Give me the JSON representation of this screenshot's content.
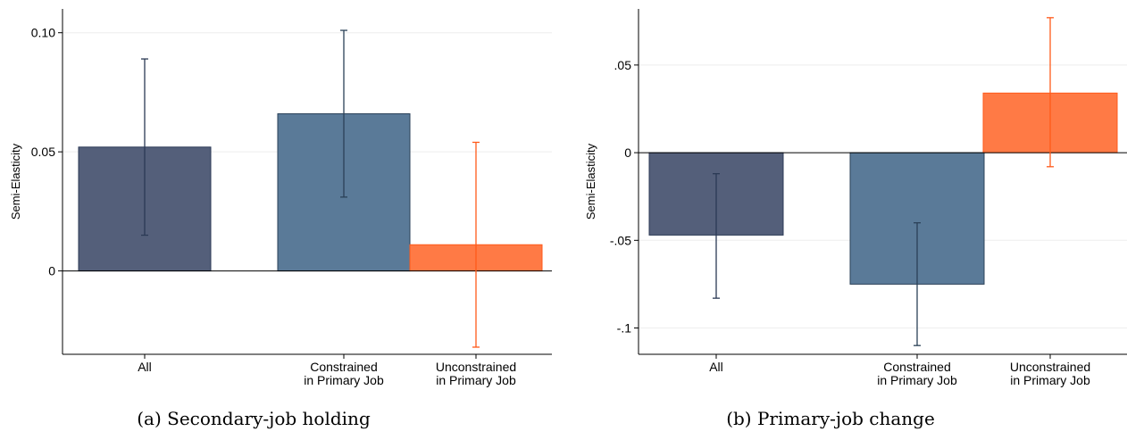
{
  "chart_data": [
    {
      "type": "bar",
      "caption": "(a) Secondary-job holding",
      "ylabel": "Semi-Elasticity",
      "ylim": [
        -0.035,
        0.11
      ],
      "yticks": [
        {
          "v": 0,
          "label": "0"
        },
        {
          "v": 0.05,
          "label": "0.05"
        },
        {
          "v": 0.1,
          "label": "0.10"
        }
      ],
      "grid": true,
      "bars": [
        {
          "label_lines": [
            "All"
          ],
          "value": 0.052,
          "ci_low": 0.015,
          "ci_high": 0.089,
          "color": "#545f7a",
          "ci_color": "#2b3a55"
        },
        {
          "label_lines": [
            "Constrained",
            "in Primary Job"
          ],
          "value": 0.066,
          "ci_low": 0.031,
          "ci_high": 0.101,
          "color": "#5a7a98",
          "ci_color": "#2b4158"
        },
        {
          "label_lines": [
            "Unconstrained",
            "in Primary Job"
          ],
          "value": 0.011,
          "ci_low": -0.032,
          "ci_high": 0.054,
          "color": "#ff7a45",
          "ci_color": "#ff5a1a"
        }
      ]
    },
    {
      "type": "bar",
      "caption": "(b) Primary-job change",
      "ylabel": "Semi-Elasticity",
      "ylim": [
        -0.115,
        0.082
      ],
      "yticks": [
        {
          "v": -0.1,
          "label": "-.1"
        },
        {
          "v": -0.05,
          "label": "-.05"
        },
        {
          "v": 0,
          "label": "0"
        },
        {
          "v": 0.05,
          "label": ".05"
        }
      ],
      "grid": true,
      "bars": [
        {
          "label_lines": [
            "All"
          ],
          "value": -0.047,
          "ci_low": -0.083,
          "ci_high": -0.012,
          "color": "#545f7a",
          "ci_color": "#2b3a55"
        },
        {
          "label_lines": [
            "Constrained",
            "in Primary Job"
          ],
          "value": -0.075,
          "ci_low": -0.11,
          "ci_high": -0.04,
          "color": "#5a7a98",
          "ci_color": "#2b4158"
        },
        {
          "label_lines": [
            "Unconstrained",
            "in Primary Job"
          ],
          "value": 0.034,
          "ci_low": -0.008,
          "ci_high": 0.077,
          "color": "#ff7a45",
          "ci_color": "#ff5a1a"
        }
      ]
    }
  ]
}
